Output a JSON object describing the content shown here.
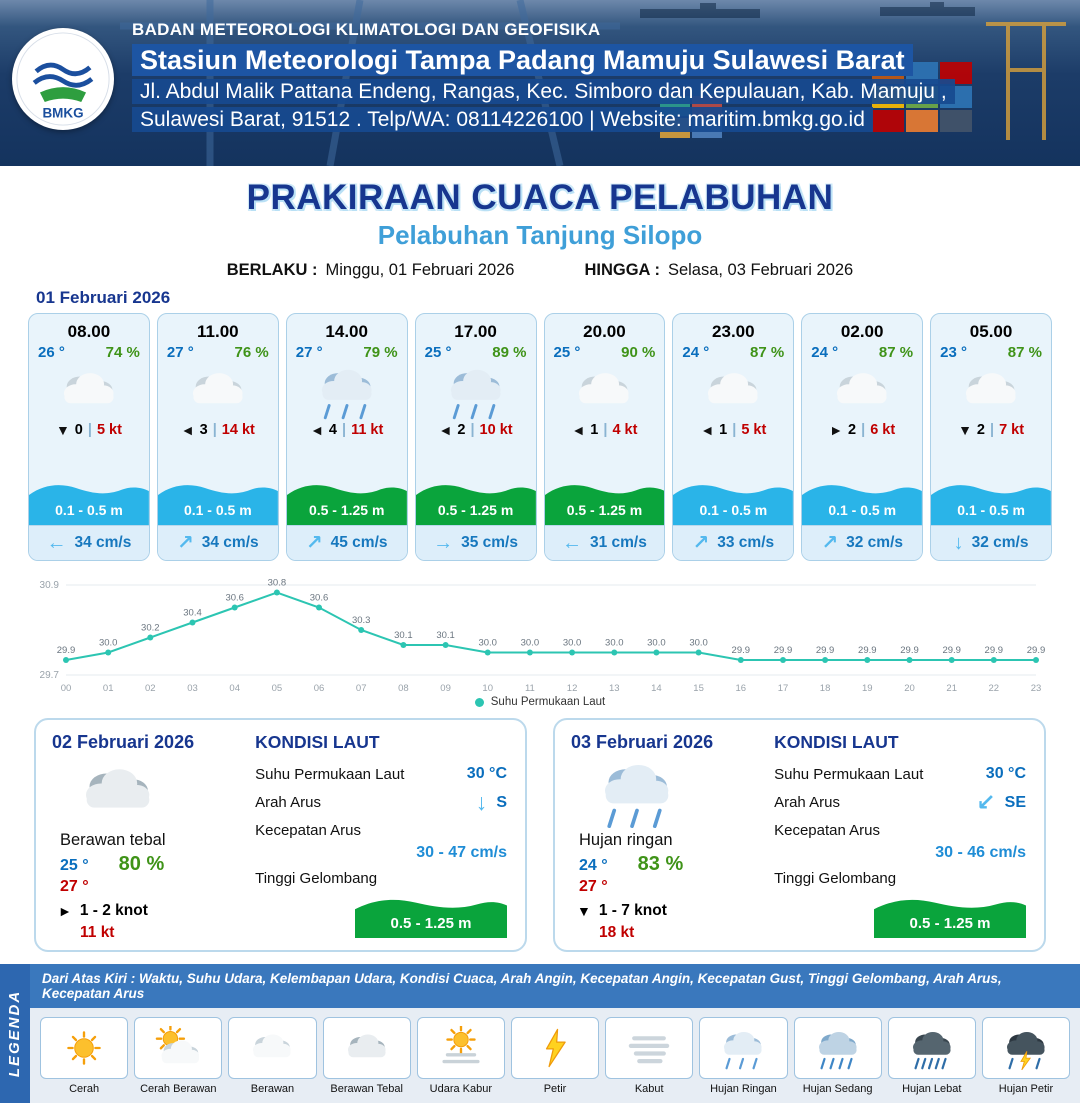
{
  "header": {
    "logo_text": "BMKG",
    "org": "BADAN METEOROLOGI KLIMATOLOGI DAN GEOFISIKA",
    "station": "Stasiun Meteorologi Tampa Padang Mamuju Sulawesi Barat",
    "address1": "Jl. Abdul Malik Pattana Endeng, Rangas, Kec. Simboro dan Kepulauan, Kab. Mamuju ,",
    "address2": "Sulawesi Barat, 91512 . Telp/WA: 08114226100 | Website: maritim.bmkg.go.id"
  },
  "title": {
    "main": "PRAKIRAAN CUACA PELABUHAN",
    "sub": "Pelabuhan Tanjung Silopo",
    "berlaku_label": "BERLAKU :",
    "berlaku_value": "Minggu, 01 Februari 2026",
    "hingga_label": "HINGGA :",
    "hingga_value": "Selasa, 03 Februari 2026"
  },
  "ui": {
    "divider": "|"
  },
  "day1": {
    "date": "01 Februari 2026",
    "cards": [
      {
        "time": "08.00",
        "temp": "26 °",
        "humidity": "74 %",
        "icon": "berawan",
        "wind_icon": "▼",
        "wind_value": "0",
        "wind_speed": "5 kt",
        "wave": "0.1 - 0.5 m",
        "wave_color": "blue",
        "current_icon": "←",
        "current": "34 cm/s"
      },
      {
        "time": "11.00",
        "temp": "27 °",
        "humidity": "76 %",
        "icon": "berawan",
        "wind_icon": "◄",
        "wind_value": "3",
        "wind_speed": "14 kt",
        "wave": "0.1 - 0.5 m",
        "wave_color": "blue",
        "current_icon": "↗",
        "current": "34 cm/s"
      },
      {
        "time": "14.00",
        "temp": "27 °",
        "humidity": "79 %",
        "icon": "hujan_ringan",
        "wind_icon": "◄",
        "wind_value": "4",
        "wind_speed": "11 kt",
        "wave": "0.5 - 1.25 m",
        "wave_color": "green",
        "current_icon": "↗",
        "current": "45 cm/s"
      },
      {
        "time": "17.00",
        "temp": "25 °",
        "humidity": "89 %",
        "icon": "hujan_ringan",
        "wind_icon": "◄",
        "wind_value": "2",
        "wind_speed": "10 kt",
        "wave": "0.5 - 1.25 m",
        "wave_color": "green",
        "current_icon": "→",
        "current": "35 cm/s"
      },
      {
        "time": "20.00",
        "temp": "25 °",
        "humidity": "90 %",
        "icon": "berawan",
        "wind_icon": "◄",
        "wind_value": "1",
        "wind_speed": "4 kt",
        "wave": "0.5 - 1.25 m",
        "wave_color": "green",
        "current_icon": "←",
        "current": "31 cm/s"
      },
      {
        "time": "23.00",
        "temp": "24 °",
        "humidity": "87 %",
        "icon": "berawan",
        "wind_icon": "◄",
        "wind_value": "1",
        "wind_speed": "5 kt",
        "wave": "0.1 - 0.5 m",
        "wave_color": "blue",
        "current_icon": "↗",
        "current": "33 cm/s"
      },
      {
        "time": "02.00",
        "temp": "24 °",
        "humidity": "87 %",
        "icon": "berawan",
        "wind_icon": "►",
        "wind_value": "2",
        "wind_speed": "6 kt",
        "wave": "0.1 - 0.5 m",
        "wave_color": "blue",
        "current_icon": "↗",
        "current": "32 cm/s"
      },
      {
        "time": "05.00",
        "temp": "23 °",
        "humidity": "87 %",
        "icon": "berawan",
        "wind_icon": "▼",
        "wind_value": "2",
        "wind_speed": "7 kt",
        "wave": "0.1 - 0.5 m",
        "wave_color": "blue",
        "current_icon": "↓",
        "current": "32 cm/s"
      }
    ]
  },
  "chart_data": {
    "type": "line",
    "x": [
      "00",
      "01",
      "02",
      "03",
      "04",
      "05",
      "06",
      "07",
      "08",
      "09",
      "10",
      "11",
      "12",
      "13",
      "14",
      "15",
      "16",
      "17",
      "18",
      "19",
      "20",
      "21",
      "22",
      "23"
    ],
    "values": [
      29.9,
      30.0,
      30.2,
      30.4,
      30.6,
      30.8,
      30.6,
      30.3,
      30.1,
      30.1,
      30.0,
      30.0,
      30.0,
      30.0,
      30.0,
      30.0,
      29.9,
      29.9,
      29.9,
      29.9,
      29.9,
      29.9,
      29.9,
      29.9
    ],
    "series_name": "Suhu Permukaan Laut",
    "ylim": [
      29.7,
      30.9
    ],
    "xlabel": "",
    "ylabel": "",
    "grid": false,
    "legend_position": "bottom",
    "line_color": "#2cc5b2"
  },
  "sea_labels": {
    "title": "KONDISI LAUT",
    "sst": "Suhu Permukaan Laut",
    "dir": "Arah Arus",
    "speed": "Kecepatan Arus",
    "wave": "Tinggi Gelombang"
  },
  "days": [
    {
      "date": "02 Februari 2026",
      "icon": "berawan_tebal",
      "condition": "Berawan tebal",
      "temp_min": "25 °",
      "humidity": "80 %",
      "temp_max": "27 °",
      "wind_icon": "►",
      "wind_range": "1 - 2 knot",
      "gust": "11 kt",
      "sst": "30 °C",
      "current_dir_icon": "↓",
      "current_dir": "S",
      "current_speed": "30 - 47 cm/s",
      "wave": "0.5 - 1.25 m",
      "wave_color": "green"
    },
    {
      "date": "03 Februari 2026",
      "icon": "hujan_ringan",
      "condition": "Hujan ringan",
      "temp_min": "24 °",
      "humidity": "83 %",
      "temp_max": "27 °",
      "wind_icon": "▼",
      "wind_range": "1 - 7 knot",
      "gust": "18 kt",
      "sst": "30 °C",
      "current_dir_icon": "↙",
      "current_dir": "SE",
      "current_speed": "30 - 46 cm/s",
      "wave": "0.5 - 1.25 m",
      "wave_color": "green"
    }
  ],
  "legend": {
    "title": "LEGENDA",
    "note": "Dari Atas Kiri : Waktu, Suhu Udara, Kelembapan Udara, Kondisi Cuaca, Arah Angin, Kecepatan Angin, Kecepatan Gust, Tinggi Gelombang, Arah Arus, Kecepatan Arus",
    "items": [
      {
        "label": "Cerah",
        "icon": "cerah"
      },
      {
        "label": "Cerah Berawan",
        "icon": "cerah_berawan"
      },
      {
        "label": "Berawan",
        "icon": "berawan"
      },
      {
        "label": "Berawan Tebal",
        "icon": "berawan_tebal"
      },
      {
        "label": "Udara Kabur",
        "icon": "udara_kabur"
      },
      {
        "label": "Petir",
        "icon": "petir"
      },
      {
        "label": "Kabut",
        "icon": "kabut"
      },
      {
        "label": "Hujan Ringan",
        "icon": "hujan_ringan"
      },
      {
        "label": "Hujan Sedang",
        "icon": "hujan_sedang"
      },
      {
        "label": "Hujan Lebat",
        "icon": "hujan_lebat"
      },
      {
        "label": "Hujan Petir",
        "icon": "hujan_petir"
      }
    ]
  },
  "colors": {
    "navy_title": "#17368f",
    "light_blue_subtitle": "#3f9fd8",
    "temp_blue": "#0a6ebd",
    "humidity_green": "#3f9318",
    "wind_speed_red": "#c00000",
    "wave_blue": "#2ab4e8",
    "wave_green": "#0aa43c",
    "current_blue": "#1778be",
    "chart_teal": "#2cc5b2"
  }
}
